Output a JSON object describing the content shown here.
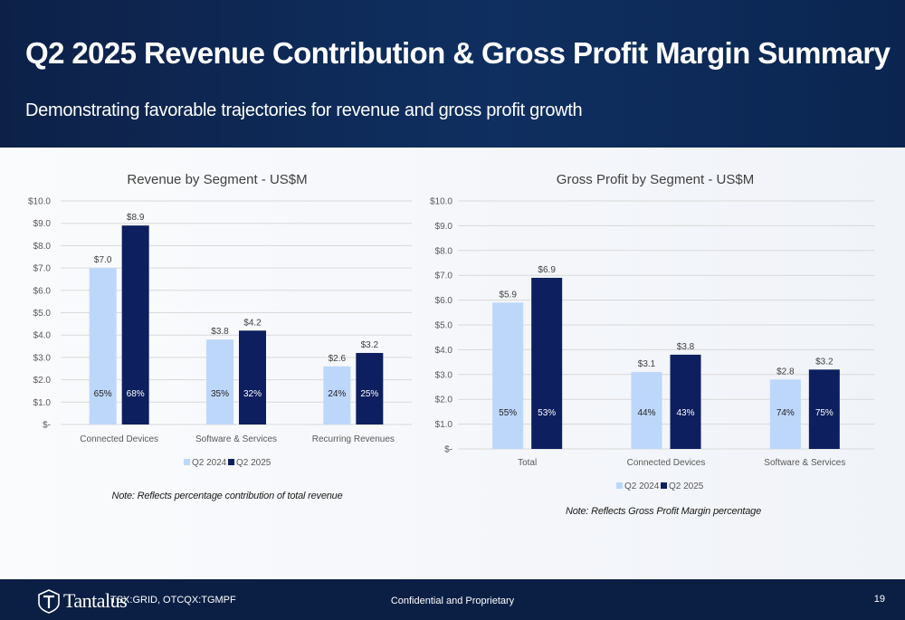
{
  "header": {
    "title": "Q2 2025 Revenue Contribution & Gross Profit Margin Summary",
    "subtitle": "Demonstrating favorable trajectories for revenue and gross profit growth"
  },
  "colors": {
    "q2_2024": "#bdd7fb",
    "q2_2025": "#0d1f5e",
    "header_bg": "#0f2f60",
    "footer_bg": "#0b1f45"
  },
  "chart_data": [
    {
      "type": "bar",
      "title": "Revenue by Segment - US$M",
      "categories": [
        "Connected Devices",
        "Software & Services",
        "Recurring Revenues"
      ],
      "series": [
        {
          "name": "Q2 2024",
          "values": [
            7.0,
            3.8,
            2.6
          ],
          "value_labels": [
            "$7.0",
            "$3.8",
            "$2.6"
          ],
          "pct_labels": [
            "65%",
            "35%",
            "24%"
          ]
        },
        {
          "name": "Q2 2025",
          "values": [
            8.9,
            4.2,
            3.2
          ],
          "value_labels": [
            "$8.9",
            "$4.2",
            "$3.2"
          ],
          "pct_labels": [
            "68%",
            "32%",
            "25%"
          ]
        }
      ],
      "ylim": [
        0,
        10
      ],
      "yticks": [
        0,
        1,
        2,
        3,
        4,
        5,
        6,
        7,
        8,
        9,
        10
      ],
      "ytick_labels": [
        "$-",
        "$1.0",
        "$2.0",
        "$3.0",
        "$4.0",
        "$5.0",
        "$6.0",
        "$7.0",
        "$8.0",
        "$9.0",
        "$10.0"
      ],
      "grid": true,
      "legend": "bottom",
      "note": "Note: Reflects percentage contribution of total revenue"
    },
    {
      "type": "bar",
      "title": "Gross Profit by Segment - US$M",
      "categories": [
        "Total",
        "Connected Devices",
        "Software & Services"
      ],
      "series": [
        {
          "name": "Q2 2024",
          "values": [
            5.9,
            3.1,
            2.8
          ],
          "value_labels": [
            "$5.9",
            "$3.1",
            "$2.8"
          ],
          "pct_labels": [
            "55%",
            "44%",
            "74%"
          ]
        },
        {
          "name": "Q2 2025",
          "values": [
            6.9,
            3.8,
            3.2
          ],
          "value_labels": [
            "$6.9",
            "$3.8",
            "$3.2"
          ],
          "pct_labels": [
            "53%",
            "43%",
            "75%"
          ]
        }
      ],
      "ylim": [
        0,
        10
      ],
      "yticks": [
        0,
        1,
        2,
        3,
        4,
        5,
        6,
        7,
        8,
        9,
        10
      ],
      "ytick_labels": [
        "$-",
        "$1.0",
        "$2.0",
        "$3.0",
        "$4.0",
        "$5.0",
        "$6.0",
        "$7.0",
        "$8.0",
        "$9.0",
        "$10.0"
      ],
      "grid": true,
      "legend": "bottom",
      "note": "Note: Reflects Gross Profit Margin percentage"
    }
  ],
  "footer": {
    "logo_text": "Tantalus",
    "ticker": "TSX:GRID, OTCQX:TGMPF",
    "confidential": "Confidential and Proprietary",
    "page_number": "19"
  }
}
